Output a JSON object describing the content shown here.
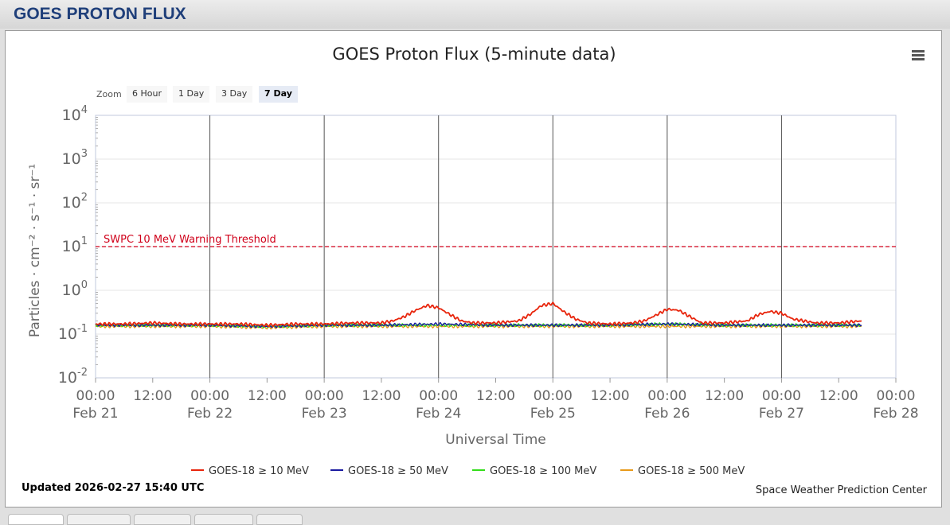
{
  "header": {
    "title": "GOES PROTON FLUX"
  },
  "chart_data": {
    "type": "line",
    "title": "GOES Proton Flux (5-minute data)",
    "xlabel": "Universal Time",
    "ylabel": "Particles · cm⁻² · s⁻¹ · sr⁻¹",
    "yscale": "log",
    "ylim": [
      0.01,
      10000
    ],
    "y_ticks": [
      {
        "value": 0.01,
        "exp": "-2"
      },
      {
        "value": 0.1,
        "exp": "-1"
      },
      {
        "value": 1,
        "exp": "0"
      },
      {
        "value": 10,
        "exp": "1"
      },
      {
        "value": 100,
        "exp": "2"
      },
      {
        "value": 1000,
        "exp": "3"
      },
      {
        "value": 10000,
        "exp": "4"
      }
    ],
    "x_range": [
      "Feb 21 00:00",
      "Feb 28 00:00"
    ],
    "x_ticks": [
      {
        "day": 0,
        "time": "00:00",
        "date": "Feb 21"
      },
      {
        "day": 0.5,
        "time": "12:00",
        "date": ""
      },
      {
        "day": 1,
        "time": "00:00",
        "date": "Feb 22"
      },
      {
        "day": 1.5,
        "time": "12:00",
        "date": ""
      },
      {
        "day": 2,
        "time": "00:00",
        "date": "Feb 23"
      },
      {
        "day": 2.5,
        "time": "12:00",
        "date": ""
      },
      {
        "day": 3,
        "time": "00:00",
        "date": "Feb 24"
      },
      {
        "day": 3.5,
        "time": "12:00",
        "date": ""
      },
      {
        "day": 4,
        "time": "00:00",
        "date": "Feb 25"
      },
      {
        "day": 4.5,
        "time": "12:00",
        "date": ""
      },
      {
        "day": 5,
        "time": "00:00",
        "date": "Feb 26"
      },
      {
        "day": 5.5,
        "time": "12:00",
        "date": ""
      },
      {
        "day": 6,
        "time": "00:00",
        "date": "Feb 27"
      },
      {
        "day": 6.5,
        "time": "12:00",
        "date": ""
      },
      {
        "day": 7,
        "time": "00:00",
        "date": "Feb 28"
      }
    ],
    "day_separators": [
      1,
      2,
      3,
      4,
      5,
      6
    ],
    "threshold": {
      "value": 10,
      "label": "SWPC 10 MeV Warning Threshold",
      "color": "#d0021b"
    },
    "series": [
      {
        "name": "GOES-18 ≥ 10 MeV",
        "color": "#e8250c",
        "x": [
          0,
          0.25,
          0.5,
          0.75,
          1.0,
          1.25,
          1.5,
          1.75,
          2.0,
          2.25,
          2.5,
          2.6,
          2.7,
          2.8,
          2.9,
          3.0,
          3.1,
          3.2,
          3.3,
          3.5,
          3.7,
          3.8,
          3.9,
          4.0,
          4.1,
          4.2,
          4.3,
          4.5,
          4.7,
          4.8,
          4.9,
          5.0,
          5.1,
          5.2,
          5.3,
          5.5,
          5.7,
          5.8,
          5.9,
          6.0,
          6.1,
          6.3,
          6.5,
          6.6,
          6.7
        ],
        "y": [
          0.17,
          0.17,
          0.18,
          0.17,
          0.17,
          0.17,
          0.16,
          0.17,
          0.17,
          0.18,
          0.18,
          0.2,
          0.25,
          0.35,
          0.45,
          0.4,
          0.28,
          0.2,
          0.18,
          0.18,
          0.2,
          0.28,
          0.45,
          0.5,
          0.32,
          0.22,
          0.18,
          0.17,
          0.18,
          0.2,
          0.27,
          0.37,
          0.35,
          0.25,
          0.18,
          0.18,
          0.2,
          0.28,
          0.33,
          0.3,
          0.22,
          0.18,
          0.18,
          0.19,
          0.2
        ]
      },
      {
        "name": "GOES-18 ≥ 50 MeV",
        "color": "#1a1aa0",
        "x": [
          0,
          0.5,
          1.0,
          1.5,
          2.0,
          2.5,
          3.0,
          3.5,
          4.0,
          4.5,
          5.0,
          5.5,
          6.0,
          6.5,
          6.7
        ],
        "y": [
          0.16,
          0.16,
          0.16,
          0.15,
          0.16,
          0.16,
          0.17,
          0.16,
          0.16,
          0.16,
          0.17,
          0.16,
          0.16,
          0.16,
          0.16
        ]
      },
      {
        "name": "GOES-18 ≥ 100 MeV",
        "color": "#33dd1a",
        "x": [
          0,
          0.5,
          1.0,
          1.5,
          2.0,
          2.5,
          3.0,
          3.5,
          4.0,
          4.5,
          5.0,
          5.5,
          6.0,
          6.5,
          6.7
        ],
        "y": [
          0.16,
          0.16,
          0.16,
          0.15,
          0.16,
          0.16,
          0.16,
          0.16,
          0.16,
          0.16,
          0.17,
          0.16,
          0.16,
          0.16,
          0.16
        ]
      },
      {
        "name": "GOES-18 ≥ 500 MeV",
        "color": "#e89a1a",
        "x": [
          0,
          0.5,
          1.0,
          1.5,
          2.0,
          2.5,
          3.0,
          3.5,
          4.0,
          4.5,
          5.0,
          5.5,
          6.0,
          6.5,
          6.7
        ],
        "y": [
          0.15,
          0.15,
          0.15,
          0.14,
          0.15,
          0.15,
          0.15,
          0.15,
          0.15,
          0.15,
          0.15,
          0.15,
          0.15,
          0.15,
          0.15
        ]
      }
    ],
    "legend_position": "bottom",
    "grid": true
  },
  "zoom": {
    "label": "Zoom",
    "buttons": [
      {
        "label": "6 Hour",
        "active": false
      },
      {
        "label": "1 Day",
        "active": false
      },
      {
        "label": "3 Day",
        "active": false
      },
      {
        "label": "7 Day",
        "active": true
      }
    ]
  },
  "footer": {
    "updated": "Updated 2026-02-27 15:40 UTC",
    "credit": "Space Weather Prediction Center"
  },
  "icons": {
    "menu": "hamburger-menu-icon"
  }
}
